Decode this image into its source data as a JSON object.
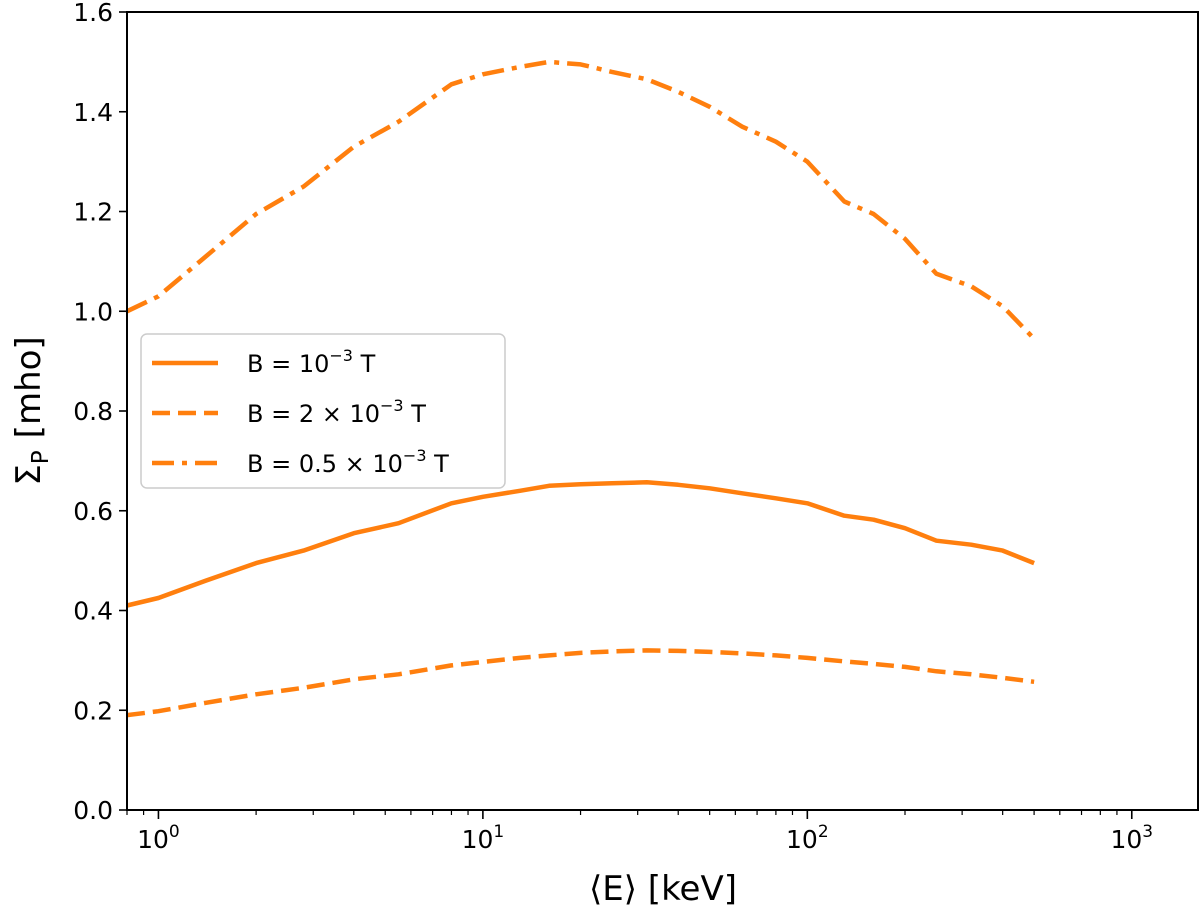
{
  "chart_data": {
    "type": "line",
    "title": "",
    "xlabel": "⟨E⟩ [keV]",
    "ylabel": "Σ_P [mho]",
    "ylabel_main": "Σ",
    "ylabel_sub": "P",
    "ylabel_unit": "[mho]",
    "xscale": "log",
    "xlim": [
      0.8,
      1600
    ],
    "ylim": [
      0.0,
      1.6
    ],
    "grid": false,
    "legend_position": "center-left",
    "color": "#ff7f0e",
    "y_ticks": [
      {
        "value": 0.0,
        "label": "0.0"
      },
      {
        "value": 0.2,
        "label": "0.2"
      },
      {
        "value": 0.4,
        "label": "0.4"
      },
      {
        "value": 0.6,
        "label": "0.6"
      },
      {
        "value": 0.8,
        "label": "0.8"
      },
      {
        "value": 1.0,
        "label": "1.0"
      },
      {
        "value": 1.2,
        "label": "1.2"
      },
      {
        "value": 1.4,
        "label": "1.4"
      },
      {
        "value": 1.6,
        "label": "1.6"
      }
    ],
    "x_major_ticks": [
      {
        "value": 1,
        "base": "10",
        "exp": "0"
      },
      {
        "value": 10,
        "base": "10",
        "exp": "1"
      },
      {
        "value": 100,
        "base": "10",
        "exp": "2"
      },
      {
        "value": 1000,
        "base": "10",
        "exp": "3"
      }
    ],
    "x_minor_ticks": [
      0.8,
      0.9,
      2,
      3,
      4,
      5,
      6,
      7,
      8,
      9,
      20,
      30,
      40,
      50,
      60,
      70,
      80,
      90,
      200,
      300,
      400,
      500,
      600,
      700,
      800,
      900
    ],
    "series": [
      {
        "name": "B = 10⁻³ T",
        "legend_prefix": "B = 10",
        "legend_exp": "−3",
        "legend_suffix": " T",
        "style": "solid",
        "x": [
          0.8,
          1,
          1.4,
          2,
          2.8,
          4,
          5.5,
          8,
          10,
          13,
          16,
          20,
          25,
          32,
          40,
          50,
          63,
          80,
          100,
          130,
          160,
          200,
          250,
          320,
          400,
          500
        ],
        "y": [
          0.41,
          0.425,
          0.46,
          0.495,
          0.52,
          0.555,
          0.575,
          0.615,
          0.628,
          0.64,
          0.65,
          0.653,
          0.655,
          0.657,
          0.652,
          0.645,
          0.635,
          0.625,
          0.615,
          0.59,
          0.582,
          0.565,
          0.54,
          0.532,
          0.52,
          0.495
        ]
      },
      {
        "name": "B = 2 × 10⁻³ T",
        "legend_prefix": "B = 2 × 10",
        "legend_exp": "−3",
        "legend_suffix": " T",
        "style": "dashed",
        "x": [
          0.8,
          1,
          1.4,
          2,
          2.8,
          4,
          5.5,
          8,
          10,
          13,
          16,
          20,
          25,
          32,
          40,
          50,
          63,
          80,
          100,
          130,
          160,
          200,
          250,
          320,
          400,
          500
        ],
        "y": [
          0.19,
          0.198,
          0.215,
          0.232,
          0.245,
          0.262,
          0.272,
          0.29,
          0.297,
          0.305,
          0.31,
          0.315,
          0.318,
          0.32,
          0.319,
          0.317,
          0.314,
          0.31,
          0.305,
          0.298,
          0.293,
          0.287,
          0.278,
          0.272,
          0.265,
          0.257
        ]
      },
      {
        "name": "B = 0.5 × 10⁻³ T",
        "legend_prefix": "B = 0.5 × 10",
        "legend_exp": "−3",
        "legend_suffix": " T",
        "style": "dashdot",
        "x": [
          0.8,
          1,
          1.4,
          2,
          2.8,
          4,
          5.5,
          8,
          10,
          13,
          16,
          20,
          25,
          32,
          40,
          50,
          63,
          80,
          100,
          130,
          160,
          200,
          250,
          320,
          400,
          500
        ],
        "y": [
          1.0,
          1.03,
          1.11,
          1.195,
          1.25,
          1.33,
          1.38,
          1.455,
          1.475,
          1.49,
          1.5,
          1.495,
          1.48,
          1.465,
          1.44,
          1.41,
          1.37,
          1.34,
          1.3,
          1.22,
          1.195,
          1.145,
          1.075,
          1.05,
          1.01,
          0.945
        ]
      }
    ]
  }
}
